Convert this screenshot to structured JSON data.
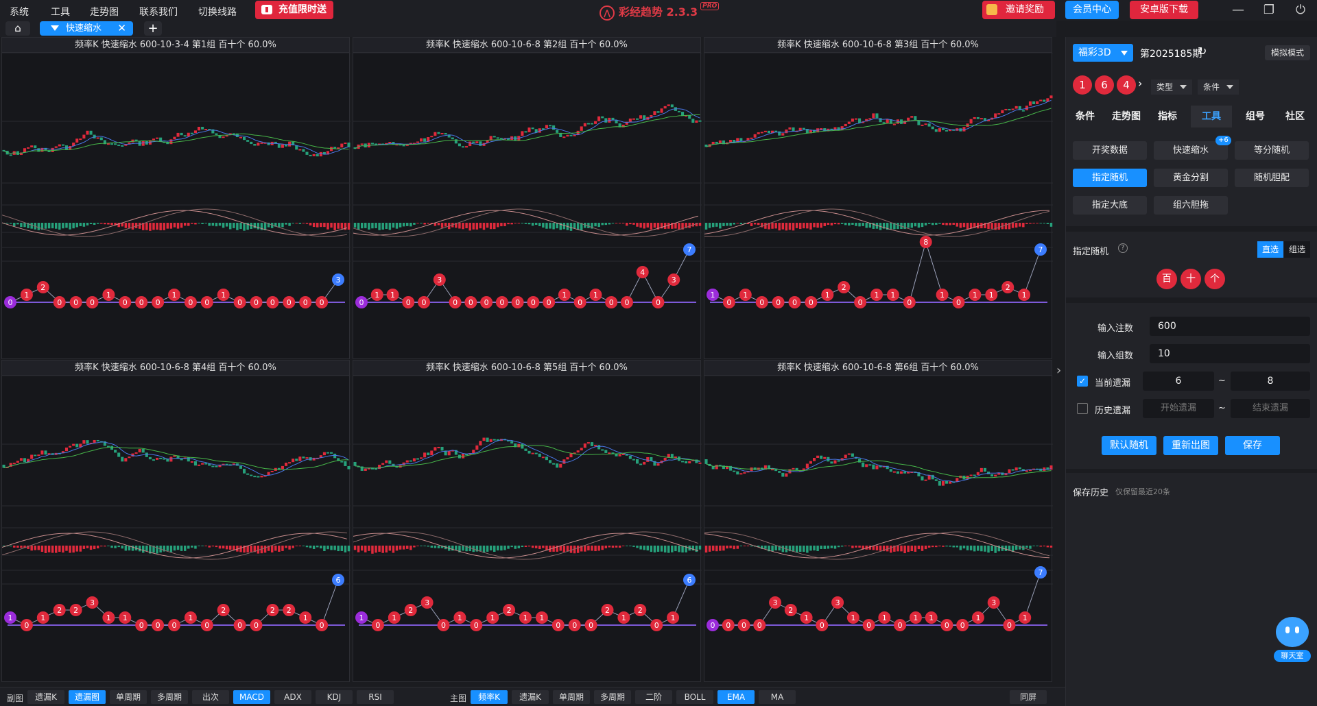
{
  "topbar": {
    "menu": [
      "系统",
      "工具",
      "走势图",
      "联系我们",
      "切换线路"
    ],
    "promo": "充值限时送",
    "app_title": "彩经趋势 2.3.3",
    "pro": "PRO",
    "invite": "邀请奖励",
    "member": "会员中心",
    "android": "安卓版下载",
    "colors": {
      "accent": "#1890ff",
      "red": "#e02a3c",
      "green": "#26a17b",
      "bg": "#16171b"
    }
  },
  "tab": {
    "label": "快速缩水"
  },
  "panels": [
    {
      "title": "频率K 快速缩水 600-10-3-4 第1组 百十个 60.0%"
    },
    {
      "title": "频率K 快速缩水 600-10-6-8 第2组 百十个 60.0%"
    },
    {
      "title": "频率K 快速缩水 600-10-6-8 第3组 百十个 60.0%"
    },
    {
      "title": "频率K 快速缩水 600-10-6-8 第4组 百十个 60.0%"
    },
    {
      "title": "频率K 快速缩水 600-10-6-8 第5组 百十个 60.0%"
    },
    {
      "title": "频率K 快速缩水 600-10-6-8 第6组 百十个 60.0%"
    }
  ],
  "chart_data": [
    {
      "type": "line",
      "series": [
        {
          "values": [
            0,
            1,
            2,
            0,
            0,
            0,
            1,
            0,
            0,
            0,
            1,
            0,
            0,
            1,
            0,
            0,
            0,
            0,
            0,
            0,
            3
          ]
        }
      ]
    },
    {
      "type": "line",
      "series": [
        {
          "values": [
            0,
            1,
            1,
            0,
            0,
            3,
            0,
            0,
            0,
            0,
            0,
            0,
            0,
            1,
            0,
            1,
            0,
            0,
            4,
            0,
            3,
            7
          ]
        }
      ]
    },
    {
      "type": "line",
      "series": [
        {
          "values": [
            1,
            0,
            1,
            0,
            0,
            0,
            0,
            1,
            2,
            0,
            1,
            1,
            0,
            8,
            1,
            0,
            1,
            1,
            2,
            1,
            7
          ]
        }
      ]
    },
    {
      "type": "line",
      "series": [
        {
          "values": [
            1,
            0,
            1,
            2,
            2,
            3,
            1,
            1,
            0,
            0,
            0,
            1,
            0,
            2,
            0,
            0,
            2,
            2,
            1,
            0,
            6
          ]
        }
      ]
    },
    {
      "type": "line",
      "series": [
        {
          "values": [
            1,
            0,
            1,
            2,
            3,
            0,
            1,
            0,
            1,
            2,
            1,
            1,
            0,
            0,
            0,
            2,
            1,
            2,
            0,
            1,
            6
          ]
        }
      ]
    },
    {
      "type": "line",
      "series": [
        {
          "values": [
            0,
            0,
            0,
            0,
            3,
            2,
            1,
            0,
            3,
            1,
            0,
            1,
            0,
            1,
            1,
            0,
            0,
            1,
            3,
            0,
            1,
            7
          ]
        }
      ]
    }
  ],
  "bottom": {
    "sub_label": "副图",
    "sub": [
      "遗漏K",
      "遗漏图",
      "单周期",
      "多周期",
      "出次",
      "MACD",
      "ADX",
      "KDJ",
      "RSI"
    ],
    "main_label": "主图",
    "main": [
      "频率K",
      "遗漏K",
      "单周期",
      "多周期",
      "二阶",
      "BOLL",
      "EMA",
      "MA"
    ],
    "sync": "同屏"
  },
  "side": {
    "lottery": "福彩3D",
    "period": "第2025185期",
    "sim": "模拟模式",
    "balls": [
      "1",
      "6",
      "4"
    ],
    "type": "类型",
    "cond": "条件",
    "tabs": [
      "条件",
      "走势图",
      "指标",
      "工具",
      "组号",
      "社区"
    ],
    "tools": [
      "开奖数据",
      "快速缩水",
      "等分随机",
      "指定随机",
      "黄金分割",
      "随机胆配",
      "指定大底",
      "组六胆拖"
    ],
    "badge": "+6",
    "random_label": "指定随机",
    "direct": "直选",
    "group": "组选",
    "pos": [
      "百",
      "十",
      "个"
    ],
    "count_label": "输入注数",
    "count": "600",
    "groups_label": "输入组数",
    "groups": "10",
    "cur_label": "当前遗漏",
    "cur_from": "6",
    "cur_to": "8",
    "tilde": "~",
    "hist_label": "历史遗漏",
    "hist_from_ph": "开始遗漏",
    "hist_to_ph": "结束遗漏",
    "btn_default": "默认随机",
    "btn_redraw": "重新出图",
    "btn_save": "保存",
    "history": "保存历史",
    "history_note": "仅保留最近20条",
    "chat": "聊天室"
  }
}
